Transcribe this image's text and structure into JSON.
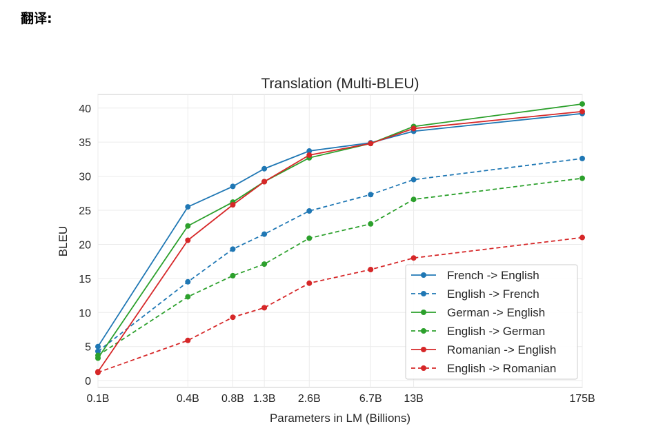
{
  "page": {
    "heading": "翻译:"
  },
  "chart_data": {
    "type": "line",
    "title": "Translation (Multi-BLEU)",
    "xlabel": "Parameters in LM (Billions)",
    "ylabel": "BLEU",
    "x": [
      0.1,
      0.4,
      0.8,
      1.3,
      2.6,
      6.7,
      13,
      175
    ],
    "x_tick_labels": [
      "0.1B",
      "0.4B",
      "0.8B",
      "1.3B",
      "2.6B",
      "6.7B",
      "13B",
      "175B"
    ],
    "x_scale": "log",
    "ylim": [
      -1,
      42
    ],
    "y_ticks": [
      0,
      5,
      10,
      15,
      20,
      25,
      30,
      35,
      40
    ],
    "grid": true,
    "legend_position": "lower-right",
    "series": [
      {
        "name": "French -> English",
        "color": "#1f77b4",
        "style": "solid",
        "values": [
          5.0,
          25.5,
          28.5,
          31.1,
          33.7,
          34.9,
          36.6,
          39.2
        ]
      },
      {
        "name": "English -> French",
        "color": "#1f77b4",
        "style": "dashed",
        "values": [
          4.3,
          14.5,
          19.3,
          21.5,
          24.9,
          27.3,
          29.5,
          32.6
        ]
      },
      {
        "name": "German -> English",
        "color": "#2ca02c",
        "style": "solid",
        "values": [
          3.3,
          22.7,
          26.2,
          29.2,
          32.7,
          34.8,
          37.3,
          40.6
        ]
      },
      {
        "name": "English -> German",
        "color": "#2ca02c",
        "style": "dashed",
        "values": [
          3.7,
          12.3,
          15.4,
          17.1,
          20.9,
          23.0,
          26.6,
          29.7
        ]
      },
      {
        "name": "Romanian -> English",
        "color": "#d62728",
        "style": "solid",
        "values": [
          1.3,
          20.6,
          25.8,
          29.2,
          33.1,
          34.8,
          37.0,
          39.5
        ]
      },
      {
        "name": "English -> Romanian",
        "color": "#d62728",
        "style": "dashed",
        "values": [
          1.2,
          5.9,
          9.3,
          10.7,
          14.3,
          16.3,
          18.0,
          21.0
        ]
      }
    ]
  }
}
